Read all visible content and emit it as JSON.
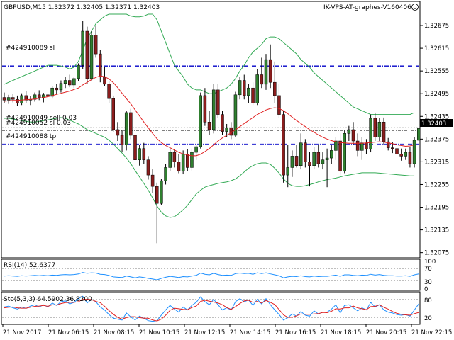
{
  "header": {
    "symbol_info": "GBPUSD,M15  1.32372 1.32405 1.32371 1.32403",
    "ea_name": "IK-VPS-AT-graphes-V160406"
  },
  "colors": {
    "bull": "#2f7f2f",
    "bear": "#8b1d1d",
    "bands": "#33aa55",
    "ma": "#e02020",
    "rsi": "#1e90ff",
    "stoch_main": "#1e90ff",
    "stoch_signal": "#e02020",
    "order_line": "#0000c8",
    "black_line": "#000000"
  },
  "orders": {
    "o1_label": "#424910089 sl",
    "o2_label": "#424910049 sell 0.03",
    "o3_label": "#424910052 sl 0.03",
    "o4_label": "#424910088 tp"
  },
  "current_price": "1.32403",
  "rsi_panel": {
    "label": "RSI(14) 52.6377",
    "levels": [
      "100",
      "70",
      "30",
      "0"
    ]
  },
  "stoch_panel": {
    "label": "Sto(5,3,3) 64.5902 36.8200",
    "levels": [
      "80",
      "20"
    ]
  },
  "chart_data": {
    "type": "candlestick",
    "price_ticks": [
      "1.32675",
      "1.32615",
      "1.32555",
      "1.32495",
      "1.32435",
      "1.32375",
      "1.32315",
      "1.32255",
      "1.32195",
      "1.32135",
      "1.32075"
    ],
    "ylim": [
      1.32065,
      1.32705
    ],
    "time_labels": [
      "21 Nov 2017",
      "21 Nov 06:15",
      "21 Nov 08:15",
      "21 Nov 10:15",
      "21 Nov 12:15",
      "21 Nov 14:15",
      "21 Nov 16:15",
      "21 Nov 18:15",
      "21 Nov 20:15",
      "21 Nov 22:15"
    ],
    "order_levels": [
      1.32568,
      1.32405,
      1.32398,
      1.32362
    ],
    "candles": [
      [
        1.32485,
        1.32498,
        1.3247,
        1.32478
      ],
      [
        1.32478,
        1.32492,
        1.32468,
        1.32485
      ],
      [
        1.32485,
        1.32495,
        1.32472,
        1.3248
      ],
      [
        1.3248,
        1.3249,
        1.32462,
        1.3247
      ],
      [
        1.3247,
        1.32496,
        1.32465,
        1.3249
      ],
      [
        1.3249,
        1.32502,
        1.3247,
        1.32478
      ],
      [
        1.32478,
        1.32488,
        1.32465,
        1.3248
      ],
      [
        1.3248,
        1.32498,
        1.32474,
        1.32492
      ],
      [
        1.32492,
        1.32504,
        1.32478,
        1.32484
      ],
      [
        1.32484,
        1.32497,
        1.32472,
        1.32492
      ],
      [
        1.32492,
        1.32505,
        1.3248,
        1.32488
      ],
      [
        1.32488,
        1.32515,
        1.32482,
        1.3251
      ],
      [
        1.3251,
        1.3252,
        1.32495,
        1.32505
      ],
      [
        1.32505,
        1.3253,
        1.32498,
        1.32522
      ],
      [
        1.32522,
        1.3254,
        1.3251,
        1.3253
      ],
      [
        1.3253,
        1.32545,
        1.32512,
        1.32518
      ],
      [
        1.32518,
        1.3254,
        1.3251,
        1.32535
      ],
      [
        1.32535,
        1.32575,
        1.32528,
        1.3257
      ],
      [
        1.3257,
        1.32688,
        1.3256,
        1.3266
      ],
      [
        1.3266,
        1.32672,
        1.3252,
        1.32535
      ],
      [
        1.32535,
        1.3266,
        1.3253,
        1.3265
      ],
      [
        1.3265,
        1.32675,
        1.3259,
        1.326
      ],
      [
        1.326,
        1.3261,
        1.32525,
        1.3254
      ],
      [
        1.3254,
        1.32565,
        1.32515,
        1.3252
      ],
      [
        1.3252,
        1.32528,
        1.3247,
        1.32482
      ],
      [
        1.32482,
        1.3249,
        1.32395,
        1.324
      ],
      [
        1.324,
        1.3242,
        1.3237,
        1.32385
      ],
      [
        1.32385,
        1.32398,
        1.3234,
        1.3236
      ],
      [
        1.3236,
        1.3245,
        1.32345,
        1.32445
      ],
      [
        1.32445,
        1.32455,
        1.32375,
        1.32385
      ],
      [
        1.32385,
        1.32398,
        1.323,
        1.3232
      ],
      [
        1.3232,
        1.3236,
        1.32305,
        1.3235
      ],
      [
        1.3235,
        1.32365,
        1.3231,
        1.3232
      ],
      [
        1.3232,
        1.3233,
        1.32268,
        1.3228
      ],
      [
        1.3228,
        1.32295,
        1.32232,
        1.3225
      ],
      [
        1.3225,
        1.3226,
        1.321,
        1.32205
      ],
      [
        1.32205,
        1.3227,
        1.322,
        1.32265
      ],
      [
        1.32265,
        1.3231,
        1.32255,
        1.323
      ],
      [
        1.323,
        1.3235,
        1.3229,
        1.3234
      ],
      [
        1.3234,
        1.32348,
        1.323,
        1.32315
      ],
      [
        1.32315,
        1.32335,
        1.32285,
        1.3229
      ],
      [
        1.3229,
        1.32345,
        1.32282,
        1.32335
      ],
      [
        1.32335,
        1.32348,
        1.3229,
        1.323
      ],
      [
        1.323,
        1.3235,
        1.32292,
        1.3234
      ],
      [
        1.3234,
        1.3236,
        1.3232,
        1.32355
      ],
      [
        1.32355,
        1.32498,
        1.3235,
        1.3249
      ],
      [
        1.3249,
        1.3251,
        1.3241,
        1.3242
      ],
      [
        1.3242,
        1.3245,
        1.32385,
        1.324
      ],
      [
        1.324,
        1.3252,
        1.3239,
        1.32505
      ],
      [
        1.32505,
        1.3252,
        1.3243,
        1.3244
      ],
      [
        1.3244,
        1.3245,
        1.32385,
        1.32395
      ],
      [
        1.32395,
        1.32415,
        1.3238,
        1.32405
      ],
      [
        1.32405,
        1.3242,
        1.32375,
        1.32385
      ],
      [
        1.32385,
        1.325,
        1.3238,
        1.32492
      ],
      [
        1.32492,
        1.3254,
        1.3248,
        1.3253
      ],
      [
        1.3253,
        1.32545,
        1.3248,
        1.3249
      ],
      [
        1.3249,
        1.3252,
        1.3247,
        1.3251
      ],
      [
        1.3251,
        1.32525,
        1.32465,
        1.3247
      ],
      [
        1.3247,
        1.3256,
        1.32465,
        1.32545
      ],
      [
        1.32545,
        1.3259,
        1.3251,
        1.3252
      ],
      [
        1.3252,
        1.326,
        1.32505,
        1.32585
      ],
      [
        1.32585,
        1.32625,
        1.3251,
        1.32525
      ],
      [
        1.32525,
        1.3258,
        1.3247,
        1.3249
      ],
      [
        1.3249,
        1.3252,
        1.3243,
        1.3244
      ],
      [
        1.3244,
        1.3245,
        1.3226,
        1.3228
      ],
      [
        1.3228,
        1.3236,
        1.32248,
        1.323
      ],
      [
        1.323,
        1.32345,
        1.32275,
        1.3233
      ],
      [
        1.3233,
        1.3236,
        1.323,
        1.32305
      ],
      [
        1.32305,
        1.3239,
        1.32295,
        1.32365
      ],
      [
        1.32365,
        1.32375,
        1.323,
        1.32315
      ],
      [
        1.32315,
        1.3234,
        1.3225,
        1.32305
      ],
      [
        1.32305,
        1.32355,
        1.32295,
        1.3234
      ],
      [
        1.3234,
        1.3236,
        1.323,
        1.3231
      ],
      [
        1.3231,
        1.3234,
        1.32295,
        1.3232
      ],
      [
        1.3232,
        1.3235,
        1.32248,
        1.32325
      ],
      [
        1.32325,
        1.3236,
        1.3231,
        1.32345
      ],
      [
        1.32345,
        1.3238,
        1.3232,
        1.3237
      ],
      [
        1.3237,
        1.3239,
        1.3228,
        1.3229
      ],
      [
        1.3229,
        1.324,
        1.32285,
        1.3239
      ],
      [
        1.3239,
        1.3241,
        1.3237,
        1.324
      ],
      [
        1.324,
        1.3242,
        1.3236,
        1.3237
      ],
      [
        1.3237,
        1.3239,
        1.3233,
        1.32345
      ],
      [
        1.32345,
        1.3238,
        1.3232,
        1.32365
      ],
      [
        1.32365,
        1.32375,
        1.32335,
        1.32348
      ],
      [
        1.32348,
        1.3244,
        1.3234,
        1.3243
      ],
      [
        1.3243,
        1.32445,
        1.3237,
        1.3238
      ],
      [
        1.3238,
        1.3243,
        1.3237,
        1.3242
      ],
      [
        1.3242,
        1.32432,
        1.3236,
        1.32368
      ],
      [
        1.32368,
        1.32378,
        1.32345,
        1.32352
      ],
      [
        1.32352,
        1.32368,
        1.32338,
        1.3235
      ],
      [
        1.3235,
        1.32362,
        1.3232,
        1.32335
      ],
      [
        1.32335,
        1.3235,
        1.32318,
        1.3233
      ],
      [
        1.3233,
        1.3235,
        1.3232,
        1.3234
      ],
      [
        1.3234,
        1.32355,
        1.323,
        1.3231
      ],
      [
        1.3231,
        1.3238,
        1.323,
        1.32372
      ],
      [
        1.32372,
        1.32405,
        1.32371,
        1.32403
      ]
    ],
    "bb_upper": [
      1.3252,
      1.32525,
      1.3253,
      1.32535,
      1.3254,
      1.32545,
      1.3255,
      1.32555,
      1.3256,
      1.32565,
      1.3257,
      1.3257,
      1.3257,
      1.32568,
      1.32565,
      1.3256,
      1.32565,
      1.3258,
      1.3261,
      1.3264,
      1.3266,
      1.3268,
      1.3269,
      1.327,
      1.32705,
      1.32705,
      1.32705,
      1.32705,
      1.32705,
      1.327,
      1.32698,
      1.32698,
      1.327,
      1.32705,
      1.32705,
      1.3269,
      1.3266,
      1.3263,
      1.326,
      1.3257,
      1.32555,
      1.3254,
      1.3252,
      1.3251,
      1.32505,
      1.32505,
      1.325,
      1.32495,
      1.32495,
      1.325,
      1.32505,
      1.3251,
      1.3252,
      1.32535,
      1.32555,
      1.3257,
      1.3259,
      1.32605,
      1.32615,
      1.32625,
      1.3264,
      1.32645,
      1.32645,
      1.3264,
      1.3263,
      1.3262,
      1.3261,
      1.326,
      1.32585,
      1.32575,
      1.32565,
      1.3255,
      1.3254,
      1.3253,
      1.3252,
      1.3251,
      1.325,
      1.3249,
      1.3248,
      1.3247,
      1.3246,
      1.32455,
      1.3245,
      1.32445,
      1.3244,
      1.3244,
      1.3244,
      1.3244,
      1.3244,
      1.3244,
      1.3244,
      1.3244,
      1.3244,
      1.3244,
      1.32445
    ],
    "bb_lower": [
      1.3243,
      1.3243,
      1.32428,
      1.32426,
      1.32424,
      1.32422,
      1.3242,
      1.3242,
      1.32422,
      1.32424,
      1.32426,
      1.32428,
      1.3243,
      1.32432,
      1.3243,
      1.32425,
      1.3242,
      1.32415,
      1.32408,
      1.324,
      1.32395,
      1.3239,
      1.32385,
      1.3238,
      1.32372,
      1.32362,
      1.3235,
      1.32338,
      1.32325,
      1.3231,
      1.32292,
      1.32275,
      1.32258,
      1.3224,
      1.3222,
      1.32198,
      1.32182,
      1.32172,
      1.32168,
      1.3217,
      1.32178,
      1.32188,
      1.322,
      1.32215,
      1.3223,
      1.3224,
      1.32248,
      1.32252,
      1.32255,
      1.32258,
      1.3226,
      1.32262,
      1.32265,
      1.3227,
      1.32278,
      1.32288,
      1.32298,
      1.32305,
      1.3231,
      1.32312,
      1.32312,
      1.32308,
      1.32298,
      1.32285,
      1.3227,
      1.32258,
      1.32252,
      1.3225,
      1.3225,
      1.32252,
      1.32255,
      1.32258,
      1.32262,
      1.32265,
      1.32268,
      1.3227,
      1.32272,
      1.32275,
      1.32278,
      1.3228,
      1.32282,
      1.32284,
      1.32286,
      1.32286,
      1.32286,
      1.32286,
      1.32285,
      1.32284,
      1.32283,
      1.32282,
      1.32281,
      1.3228,
      1.32279,
      1.32278,
      1.32278
    ],
    "ma": [
      1.32475,
      1.32476,
      1.32477,
      1.32477,
      1.32478,
      1.32479,
      1.3248,
      1.32481,
      1.32483,
      1.32485,
      1.32487,
      1.3249,
      1.32493,
      1.32496,
      1.32499,
      1.32502,
      1.32506,
      1.3251,
      1.32518,
      1.32525,
      1.32532,
      1.32538,
      1.32542,
      1.3254,
      1.32534,
      1.32524,
      1.32511,
      1.32496,
      1.32482,
      1.32468,
      1.32452,
      1.32436,
      1.3242,
      1.32405,
      1.3239,
      1.32376,
      1.32366,
      1.32358,
      1.32352,
      1.32346,
      1.3234,
      1.32336,
      1.32333,
      1.32331,
      1.32331,
      1.32335,
      1.32342,
      1.3235,
      1.3236,
      1.3237,
      1.32378,
      1.32385,
      1.32392,
      1.324,
      1.32408,
      1.32416,
      1.32424,
      1.32432,
      1.3244,
      1.32446,
      1.32452,
      1.32456,
      1.32458,
      1.32456,
      1.3245,
      1.32442,
      1.32433,
      1.32424,
      1.32416,
      1.32408,
      1.324,
      1.32393,
      1.32386,
      1.3238,
      1.32375,
      1.32371,
      1.32368,
      1.32366,
      1.32365,
      1.32364,
      1.32364,
      1.32364,
      1.32364,
      1.32365,
      1.32366,
      1.32367,
      1.32368,
      1.32367,
      1.32365,
      1.32363,
      1.3236,
      1.32358,
      1.32356,
      1.32357,
      1.3236
    ],
    "rsi": [
      46,
      47,
      46,
      45,
      47,
      46,
      47,
      48,
      47,
      48,
      47,
      49,
      48,
      50,
      51,
      50,
      51,
      53,
      58,
      55,
      57,
      56,
      52,
      51,
      48,
      43,
      42,
      41,
      46,
      43,
      40,
      43,
      41,
      38,
      36,
      33,
      38,
      42,
      45,
      43,
      41,
      44,
      43,
      46,
      48,
      56,
      52,
      50,
      55,
      51,
      48,
      49,
      48,
      54,
      56,
      54,
      55,
      52,
      57,
      54,
      57,
      53,
      50,
      47,
      40,
      43,
      45,
      44,
      47,
      44,
      43,
      46,
      44,
      45,
      45,
      47,
      49,
      45,
      50,
      50,
      48,
      47,
      49,
      48,
      52,
      49,
      51,
      48,
      47,
      47,
      46,
      46,
      47,
      45,
      50,
      53
    ],
    "stoch_main": [
      55,
      58,
      52,
      48,
      55,
      50,
      58,
      62,
      55,
      62,
      55,
      68,
      60,
      72,
      75,
      65,
      70,
      82,
      90,
      68,
      80,
      72,
      55,
      45,
      30,
      18,
      15,
      12,
      35,
      22,
      12,
      25,
      18,
      10,
      8,
      10,
      28,
      45,
      60,
      48,
      38,
      55,
      45,
      60,
      70,
      88,
      72,
      62,
      80,
      62,
      45,
      52,
      45,
      72,
      82,
      72,
      78,
      60,
      80,
      65,
      82,
      62,
      45,
      30,
      12,
      20,
      32,
      25,
      40,
      28,
      25,
      42,
      32,
      38,
      38,
      48,
      62,
      35,
      60,
      62,
      52,
      42,
      52,
      45,
      70,
      55,
      62,
      45,
      38,
      35,
      30,
      28,
      30,
      25,
      45,
      65
    ],
    "stoch_signal": [
      52,
      54,
      55,
      52,
      51,
      51,
      54,
      57,
      58,
      60,
      57,
      62,
      61,
      66,
      69,
      70,
      70,
      72,
      80,
      80,
      79,
      73,
      69,
      57,
      43,
      31,
      21,
      15,
      20,
      23,
      23,
      20,
      18,
      18,
      12,
      9,
      15,
      28,
      44,
      51,
      49,
      47,
      46,
      53,
      58,
      73,
      77,
      74,
      71,
      68,
      62,
      53,
      47,
      56,
      66,
      75,
      77,
      70,
      73,
      68,
      76,
      70,
      63,
      46,
      29,
      21,
      21,
      26,
      32,
      31,
      31,
      32,
      33,
      37,
      36,
      41,
      49,
      48,
      52,
      52,
      58,
      52,
      49,
      46,
      56,
      57,
      62,
      54,
      48,
      40,
      34,
      31,
      29,
      28,
      33,
      37
    ]
  }
}
